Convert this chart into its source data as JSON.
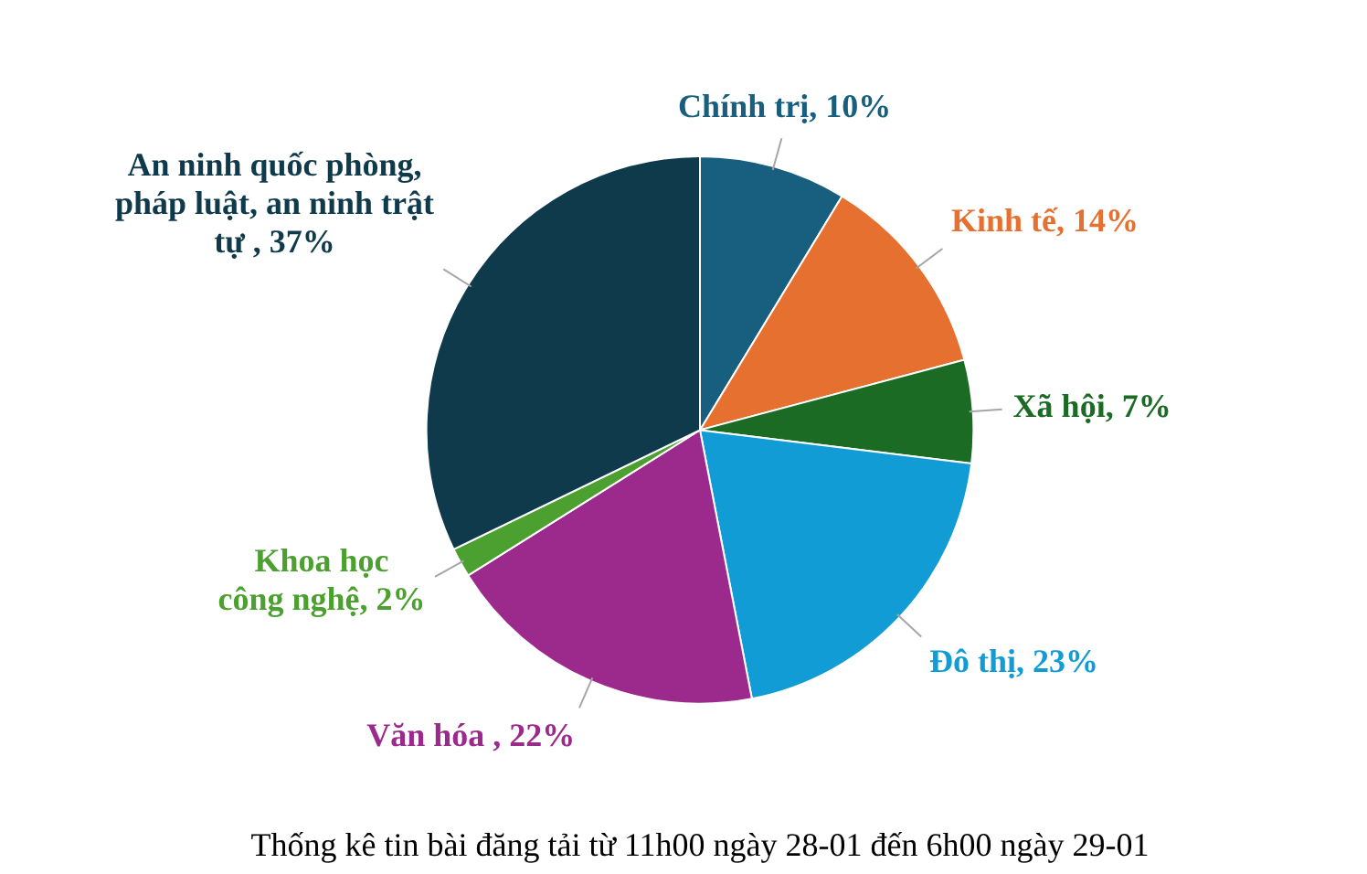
{
  "chart_data": {
    "type": "pie",
    "title": "Thống kê tin bài đăng tải từ 11h00 ngày 28-01 đến 6h00 ngày 29-01",
    "categories": [
      "Chính trị",
      "Kinh tế",
      "Xã hội",
      "Đô thị",
      "Văn hóa ",
      "Khoa học công nghệ",
      "An ninh quốc phòng, pháp luật, an ninh trật tự "
    ],
    "values": [
      10,
      14,
      7,
      23,
      22,
      2,
      37
    ],
    "value_labels": [
      "10%",
      "14%",
      "7%",
      "23%",
      "22%",
      "2%",
      "37%"
    ],
    "colors": [
      "#175e7f",
      "#e57030",
      "#1b6b25",
      "#129cd6",
      "#9c2a8c",
      "#4ca02f",
      "#0e3a4c"
    ]
  }
}
